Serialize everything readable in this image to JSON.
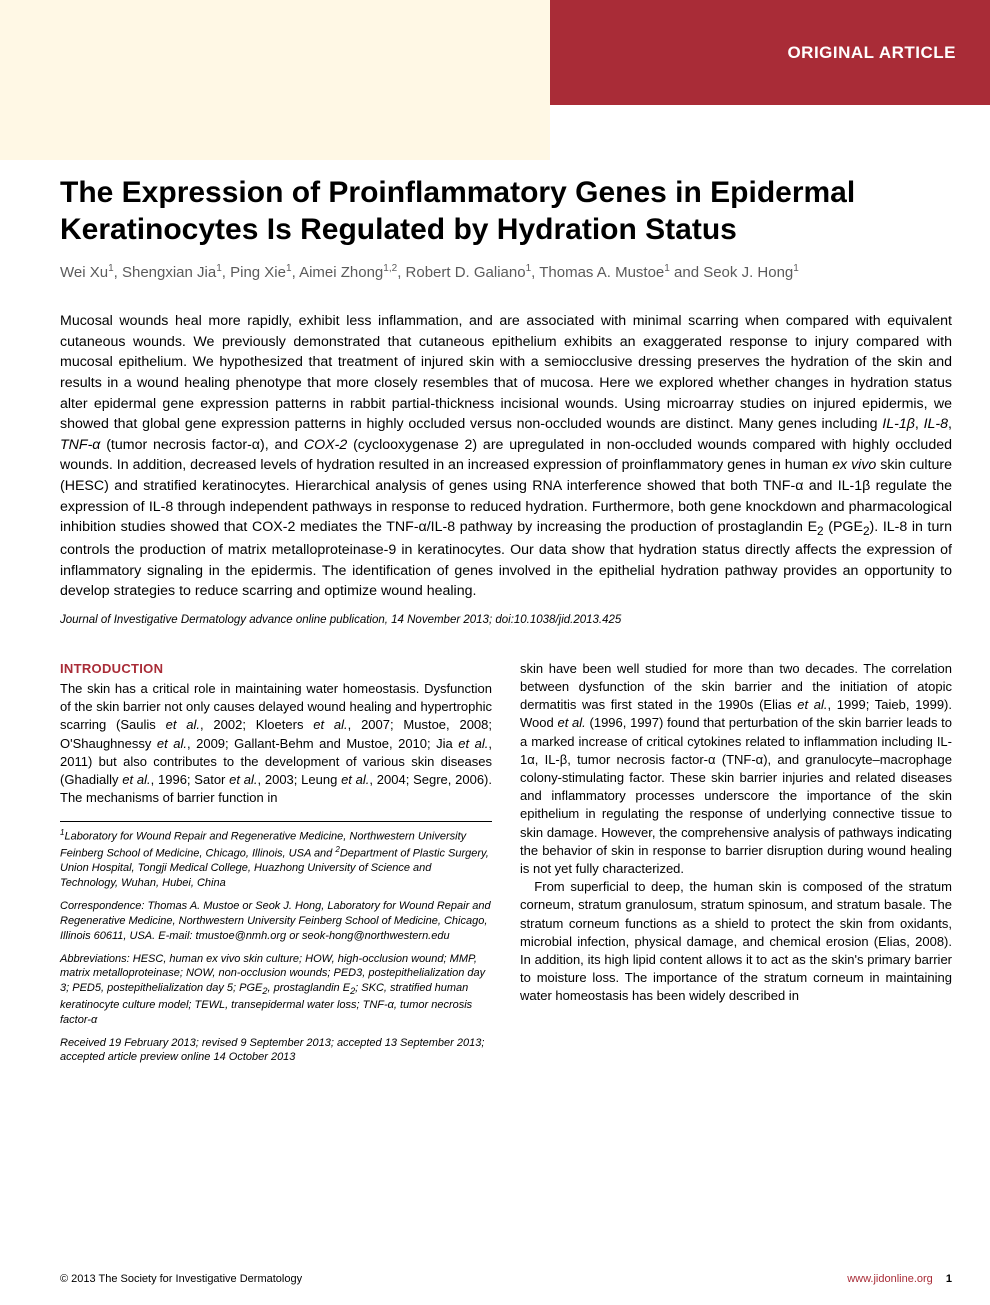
{
  "colors": {
    "accent": "#a92c37",
    "header_bg": "#a92c37",
    "top_left_bg": "#fff8e5",
    "body_bg": "#ffffff",
    "text": "#000000",
    "author_text": "#5b5b5b"
  },
  "typography": {
    "title_fontsize": 30,
    "title_weight": 700,
    "author_fontsize": 15,
    "abstract_fontsize": 14.2,
    "body_fontsize": 13,
    "section_head_fontsize": 13,
    "citation_fontsize": 11.5,
    "affil_fontsize": 11,
    "footer_fontsize": 11
  },
  "header": {
    "label": "ORIGINAL ARTICLE"
  },
  "title": "The Expression of Proinflammatory Genes in Epidermal Keratinocytes Is Regulated by Hydration Status",
  "authors_html": "Wei Xu<sup>1</sup>, Shengxian Jia<sup>1</sup>, Ping Xie<sup>1</sup>, Aimei Zhong<sup>1,2</sup>, Robert D. Galiano<sup>1</sup>, Thomas A. Mustoe<sup>1</sup> and Seok J. Hong<sup>1</sup>",
  "abstract_html": "Mucosal wounds heal more rapidly, exhibit less inflammation, and are associated with minimal scarring when compared with equivalent cutaneous wounds. We previously demonstrated that cutaneous epithelium exhibits an exaggerated response to injury compared with mucosal epithelium. We hypothesized that treatment of injured skin with a semiocclusive dressing preserves the hydration of the skin and results in a wound healing phenotype that more closely resembles that of mucosa. Here we explored whether changes in hydration status alter epidermal gene expression patterns in rabbit partial-thickness incisional wounds. Using microarray studies on injured epidermis, we showed that global gene expression patterns in highly occluded versus non-occluded wounds are distinct. Many genes including <em>IL-1β</em>, <em>IL-8</em>, <em>TNF-α</em> (tumor necrosis factor-α), and <em>COX-2</em> (cyclooxygenase 2) are upregulated in non-occluded wounds compared with highly occluded wounds. In addition, decreased levels of hydration resulted in an increased expression of proinflammatory genes in human <em>ex vivo</em> skin culture (HESC) and stratified keratinocytes. Hierarchical analysis of genes using RNA interference showed that both TNF-α and IL-1β regulate the expression of IL-8 through independent pathways in response to reduced hydration. Furthermore, both gene knockdown and pharmacological inhibition studies showed that COX-2 mediates the TNF-α/IL-8 pathway by increasing the production of prostaglandin E<sub>2</sub> (PGE<sub>2</sub>). IL-8 in turn controls the production of matrix metalloproteinase-9 in keratinocytes. Our data show that hydration status directly affects the expression of inflammatory signaling in the epidermis. The identification of genes involved in the epithelial hydration pathway provides an opportunity to develop strategies to reduce scarring and optimize wound healing.",
  "citation": "Journal of Investigative Dermatology advance online publication, 14 November 2013; doi:10.1038/jid.2013.425",
  "section_head": "INTRODUCTION",
  "col1_p1_html": "The skin has a critical role in maintaining water homeostasis. Dysfunction of the skin barrier not only causes delayed wound healing and hypertrophic scarring (Saulis <em>et al.</em>, 2002; Kloeters <em>et al.</em>, 2007; Mustoe, 2008; O'Shaughnessy <em>et al.</em>, 2009; Gallant-Behm and Mustoe, 2010; Jia <em>et al.</em>, 2011) but also contributes to the development of various skin diseases (Ghadially <em>et al.</em>, 1996; Sator <em>et al.</em>, 2003; Leung <em>et al.</em>, 2004; Segre, 2006). The mechanisms of barrier function in",
  "col2_p1_html": "skin have been well studied for more than two decades. The correlation between dysfunction of the skin barrier and the initiation of atopic dermatitis was first stated in the 1990s (Elias <em>et al.</em>, 1999; Taieb, 1999). Wood <em>et al.</em> (1996, 1997) found that perturbation of the skin barrier leads to a marked increase of critical cytokines related to inflammation including IL-1α, IL-β, tumor necrosis factor-α (TNF-α), and granulocyte–macrophage colony-stimulating factor. These skin barrier injuries and related diseases and inflammatory processes underscore the importance of the skin epithelium in regulating the response of underlying connective tissue to skin damage. However, the comprehensive analysis of pathways indicating the behavior of skin in response to barrier disruption during wound healing is not yet fully characterized.",
  "col2_p2_html": "From superficial to deep, the human skin is composed of the stratum corneum, stratum granulosum, stratum spinosum, and stratum basale. The stratum corneum functions as a shield to protect the skin from oxidants, microbial infection, physical damage, and chemical erosion (Elias, 2008). In addition, its high lipid content allows it to act as the skin's primary barrier to moisture loss. The importance of the stratum corneum in maintaining water homeostasis has been widely described in",
  "affiliations_html": "<sup>1</sup>Laboratory for Wound Repair and Regenerative Medicine, Northwestern University Feinberg School of Medicine, Chicago, Illinois, USA and <sup>2</sup>Department of Plastic Surgery, Union Hospital, Tongji Medical College, Huazhong University of Science and Technology, Wuhan, Hubei, China",
  "correspondence_html": "Correspondence: Thomas A. Mustoe or Seok J. Hong, Laboratory for Wound Repair and Regenerative Medicine, Northwestern University Feinberg School of Medicine, Chicago, Illinois 60611, USA. E-mail: tmustoe@nmh.org or seok-hong@northwestern.edu",
  "abbreviations_html": "Abbreviations: HESC, human ex vivo skin culture; HOW, high-occlusion wound; MMP, matrix metalloproteinase; NOW, non-occlusion wounds; PED3, postepithelialization day 3; PED5, postepithelialization day 5; PGE<sub>2</sub>, prostaglandin E<sub>2</sub>; SKC, stratified human keratinocyte culture model; TEWL, transepidermal water loss; TNF-α, tumor necrosis factor-α",
  "received": "Received 19 February 2013; revised 9 September 2013; accepted 13 September 2013; accepted article preview online 14 October 2013",
  "footer": {
    "left": "© 2013 The Society for Investigative Dermatology",
    "right_link": "www.jidonline.org",
    "page": "1"
  }
}
